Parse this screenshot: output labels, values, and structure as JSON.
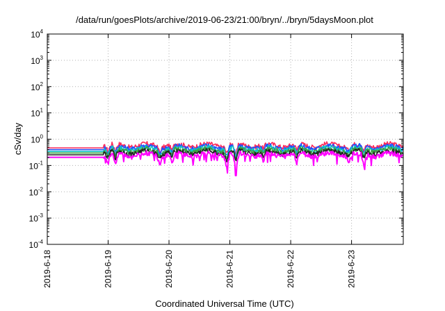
{
  "chart_data": {
    "type": "line",
    "title": "/data/run/goesPlots/archive/2019-06-23/21:00/bryn/../bryn/5daysMoon.plot",
    "xlabel": "Coordinated Universal Time (UTC)",
    "ylabel": "cSv/day",
    "yscale": "log",
    "ylim_exponents": [
      -4,
      4
    ],
    "y_ticks": [
      {
        "base": "10",
        "exp": "4"
      },
      {
        "base": "10",
        "exp": "3"
      },
      {
        "base": "10",
        "exp": "2"
      },
      {
        "base": "10",
        "exp": "1"
      },
      {
        "base": "10",
        "exp": "0"
      },
      {
        "base": "10",
        "exp": "-1"
      },
      {
        "base": "10",
        "exp": "-2"
      },
      {
        "base": "10",
        "exp": "-3"
      },
      {
        "base": "10",
        "exp": "-4"
      }
    ],
    "xlim_days": [
      0,
      5.85
    ],
    "x_ticks": [
      {
        "label": "2019-6-18",
        "day": 0
      },
      {
        "label": "2019-6-19",
        "day": 1
      },
      {
        "label": "2019-6-20",
        "day": 2
      },
      {
        "label": "2019-6-21",
        "day": 3
      },
      {
        "label": "2019-6-22",
        "day": 4
      },
      {
        "label": "2019-6-23",
        "day": 5
      }
    ],
    "grid": true,
    "legend": "none",
    "series": [
      {
        "color": "#ff2a5a",
        "base": 0.55
      },
      {
        "color": "#1e4fff",
        "base": 0.47
      },
      {
        "color": "#10c4c4",
        "base": 0.4
      },
      {
        "color": "#3aa040",
        "base": 0.35
      },
      {
        "color": "#222222",
        "base": 0.3
      },
      {
        "color": "#ff00ff",
        "base": 0.24
      }
    ],
    "flat_until_day": 0.92,
    "flat_value_scale": 0.85,
    "dips": [
      {
        "day": 1.0,
        "depth": 0.45
      },
      {
        "day": 1.12,
        "depth": 0.5
      },
      {
        "day": 1.85,
        "depth": 0.4
      },
      {
        "day": 2.05,
        "depth": 0.45
      },
      {
        "day": 2.95,
        "depth": 0.5
      },
      {
        "day": 3.1,
        "depth": 0.7
      },
      {
        "day": 3.55,
        "depth": 0.35
      },
      {
        "day": 4.1,
        "depth": 0.45
      },
      {
        "day": 4.95,
        "depth": 0.35
      },
      {
        "day": 5.2,
        "depth": 0.5
      }
    ]
  }
}
